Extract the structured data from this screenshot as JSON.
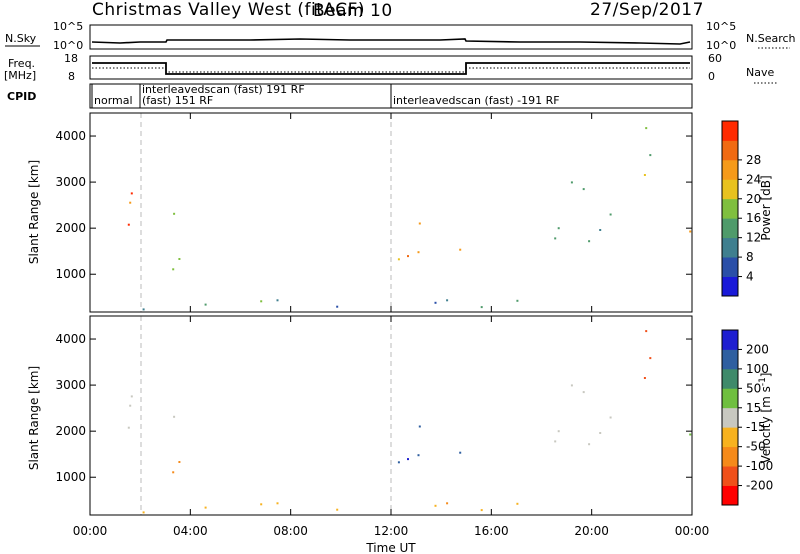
{
  "header": {
    "station": "Christmas Valley West (fitACF)",
    "beam": "Beam 10",
    "date": "27/Sep/2017"
  },
  "panels": {
    "nsky_label": "N.Sky",
    "nsky_ticks": [
      "10^5",
      "10^0"
    ],
    "nsearch_label": "N.Search",
    "nsearch_ticks": [
      "10^5",
      "10^0"
    ],
    "freq_label_1": "Freq.",
    "freq_label_2": "[MHz]",
    "freq_ticks": [
      "18",
      "8"
    ],
    "nave_label": "Nave",
    "nave_ticks": [
      "60",
      "0"
    ],
    "cpid_label": "CPID",
    "cpid_segments": [
      {
        "label": "normal"
      },
      {
        "label": "interleavedscan (fast) 191 RF"
      },
      {
        "label": "(fast) 151 RF"
      },
      {
        "label": "interleavedscan (fast) -191 RF"
      }
    ]
  },
  "axes": {
    "ylabel": "Slant Range [km]",
    "xlabel": "Time UT",
    "x_ticks": [
      "00:00",
      "04:00",
      "08:00",
      "12:00",
      "16:00",
      "20:00",
      "00:00"
    ],
    "y_ticks": [
      "1000",
      "2000",
      "3000",
      "4000"
    ]
  },
  "colorbars": {
    "power": {
      "label": "Power [dB]",
      "ticks": [
        "4",
        "8",
        "12",
        "16",
        "20",
        "24",
        "28"
      ],
      "colors": [
        "#1a1ad8",
        "#2a4fa8",
        "#3f7f8f",
        "#4f9b6b",
        "#7fbf3f",
        "#e8c21f",
        "#f59a1a",
        "#f06a12",
        "#ff2a00"
      ]
    },
    "velocity": {
      "label": "Velocity [m s^-1]",
      "ticks": [
        "200",
        "100",
        "50",
        "15",
        "-15",
        "-50",
        "-100",
        "-200"
      ],
      "colors": [
        "#1f1fd0",
        "#2f5fa0",
        "#3f8a6a",
        "#6fbf3f",
        "#c8c8c0",
        "#f7b21f",
        "#f58a1a",
        "#f0501a",
        "#ff0000"
      ]
    }
  },
  "chart_data": {
    "type": "heatmap",
    "title": "Christmas Valley West (fitACF)",
    "x_range_hours": [
      0,
      24
    ],
    "y_range_km": [
      180,
      4500
    ],
    "x_ticks_hours": [
      0,
      4,
      8,
      12,
      16,
      20,
      24
    ],
    "y_ticks_km": [
      1000,
      2000,
      3000,
      4000
    ],
    "power_range_db": [
      0,
      30
    ],
    "velocity_range": [
      -200,
      200
    ],
    "dashed_vertical_lines_hours": [
      2.0,
      12.0
    ],
    "scatter_regions": [
      {
        "t0": 0.0,
        "t1": 2.3,
        "r0": 1700,
        "r1": 3000,
        "power": 26,
        "velocity": 0
      },
      {
        "t0": 2.6,
        "t1": 3.5,
        "r0": 2200,
        "r1": 2900,
        "power": 14,
        "velocity": 0
      },
      {
        "t0": 3.0,
        "t1": 5.5,
        "r0": 800,
        "r1": 1500,
        "power": 12,
        "velocity": -60
      },
      {
        "t0": 11.8,
        "t1": 14.8,
        "r0": 900,
        "r1": 2300,
        "power": 20,
        "velocity": 190
      },
      {
        "t0": 17.5,
        "t1": 21.5,
        "r0": 1600,
        "r1": 3100,
        "power": 11,
        "velocity": 0
      },
      {
        "t0": 21.5,
        "t1": 22.8,
        "r0": 2000,
        "r1": 4300,
        "power": 18,
        "velocity": -180
      },
      {
        "t0": 22.8,
        "t1": 24.0,
        "r0": 1400,
        "r1": 2300,
        "power": 25,
        "velocity": 30
      },
      {
        "t0": 0.0,
        "t1": 24.0,
        "r0": 180,
        "r1": 500,
        "power": 10,
        "velocity": -40
      }
    ]
  }
}
